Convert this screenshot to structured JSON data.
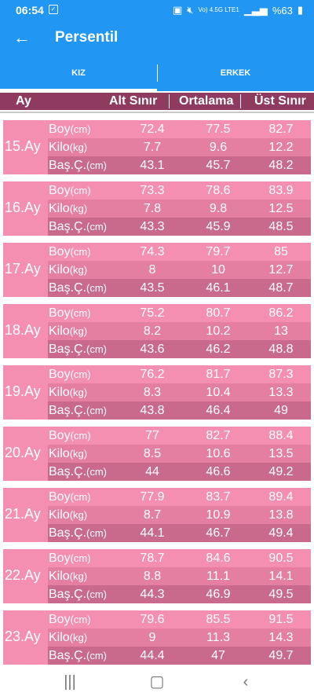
{
  "status": {
    "time": "06:54",
    "signal_text": "Vo) 4.5G LTE1",
    "battery": "%63"
  },
  "app_bar": {
    "title": "Persentil"
  },
  "tabs": [
    {
      "label": "KIZ",
      "selected": true
    },
    {
      "label": "ERKEK",
      "selected": false
    }
  ],
  "header": {
    "ay": "Ay",
    "alt": "Alt Sınır",
    "ortalama": "Ortalama",
    "ust": "Üst Sınır"
  },
  "labels": {
    "boy": "Boy",
    "kilo": "Kilo",
    "bas": "Baş.Ç.",
    "cm": "(cm)",
    "kg": "(kg)"
  },
  "rows": [
    {
      "month": "15.Ay",
      "boy": [
        "72.4",
        "77.5",
        "82.7"
      ],
      "kilo": [
        "7.7",
        "9.6",
        "12.2"
      ],
      "bas": [
        "43.1",
        "45.7",
        "48.2"
      ]
    },
    {
      "month": "16.Ay",
      "boy": [
        "73.3",
        "78.6",
        "83.9"
      ],
      "kilo": [
        "7.8",
        "9.8",
        "12.5"
      ],
      "bas": [
        "43.3",
        "45.9",
        "48.5"
      ]
    },
    {
      "month": "17.Ay",
      "boy": [
        "74.3",
        "79.7",
        "85"
      ],
      "kilo": [
        "8",
        "10",
        "12.7"
      ],
      "bas": [
        "43.5",
        "46.1",
        "48.7"
      ]
    },
    {
      "month": "18.Ay",
      "boy": [
        "75.2",
        "80.7",
        "86.2"
      ],
      "kilo": [
        "8.2",
        "10.2",
        "13"
      ],
      "bas": [
        "43.6",
        "46.2",
        "48.8"
      ]
    },
    {
      "month": "19.Ay",
      "boy": [
        "76.2",
        "81.7",
        "87.3"
      ],
      "kilo": [
        "8.3",
        "10.4",
        "13.3"
      ],
      "bas": [
        "43.8",
        "46.4",
        "49"
      ]
    },
    {
      "month": "20.Ay",
      "boy": [
        "77",
        "82.7",
        "88.4"
      ],
      "kilo": [
        "8.5",
        "10.6",
        "13.5"
      ],
      "bas": [
        "44",
        "46.6",
        "49.2"
      ]
    },
    {
      "month": "21.Ay",
      "boy": [
        "77.9",
        "83.7",
        "89.4"
      ],
      "kilo": [
        "8.7",
        "10.9",
        "13.8"
      ],
      "bas": [
        "44.1",
        "46.7",
        "49.4"
      ]
    },
    {
      "month": "22.Ay",
      "boy": [
        "78.7",
        "84.6",
        "90.5"
      ],
      "kilo": [
        "8.8",
        "11.1",
        "14.1"
      ],
      "bas": [
        "44.3",
        "46.9",
        "49.5"
      ]
    },
    {
      "month": "23.Ay",
      "boy": [
        "79.6",
        "85.5",
        "91.5"
      ],
      "kilo": [
        "9",
        "11.3",
        "14.3"
      ],
      "bas": [
        "44.4",
        "47",
        "49.7"
      ]
    }
  ],
  "colors": {
    "primary": "#2196f3",
    "header": "#8e3b5f",
    "row_boy": "#f48fb1",
    "row_kilo": "#e57fa2",
    "row_bas": "#c96a8c"
  },
  "nav_icons": [
    "recent-apps-icon",
    "home-icon",
    "back-icon"
  ]
}
